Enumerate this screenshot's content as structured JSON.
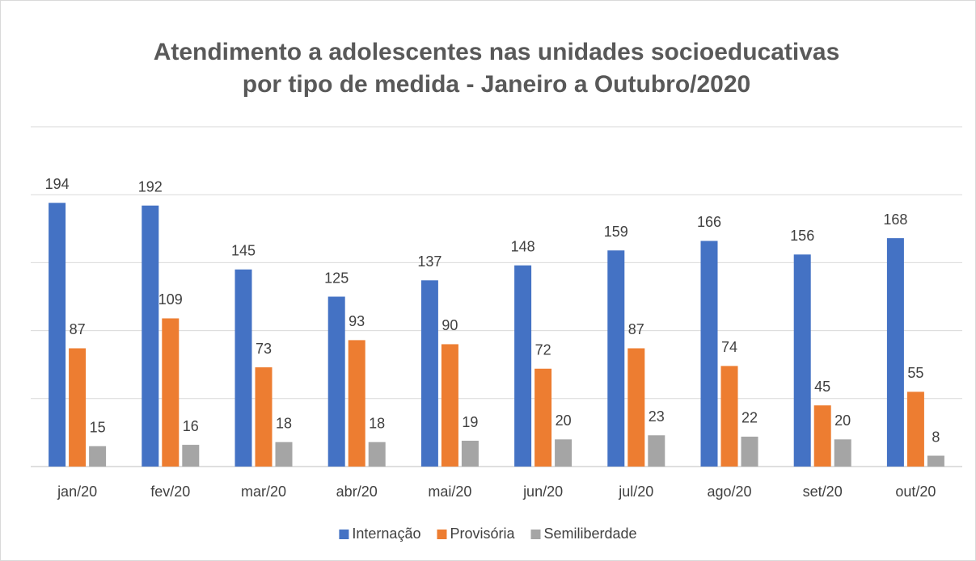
{
  "chart_data": {
    "type": "bar",
    "title": [
      "Atendimento a adolescentes nas unidades socioeducativas",
      "por tipo de medida - Janeiro a Outubro/2020"
    ],
    "categories": [
      "jan/20",
      "fev/20",
      "mar/20",
      "abr/20",
      "mai/20",
      "jun/20",
      "jul/20",
      "ago/20",
      "set/20",
      "out/20"
    ],
    "series": [
      {
        "name": "Internação",
        "color": "#4472c4",
        "values": [
          194,
          192,
          145,
          125,
          137,
          148,
          159,
          166,
          156,
          168
        ]
      },
      {
        "name": "Provisória",
        "color": "#ed7d31",
        "values": [
          87,
          109,
          73,
          93,
          90,
          72,
          87,
          74,
          45,
          55
        ]
      },
      {
        "name": "Semiliberdade",
        "color": "#a5a5a5",
        "values": [
          15,
          16,
          18,
          18,
          19,
          20,
          23,
          22,
          20,
          8
        ]
      }
    ],
    "ylim": [
      0,
      250
    ],
    "yticks": [
      0,
      50,
      100,
      150,
      200,
      250
    ],
    "grid": true,
    "legend": "bottom"
  }
}
